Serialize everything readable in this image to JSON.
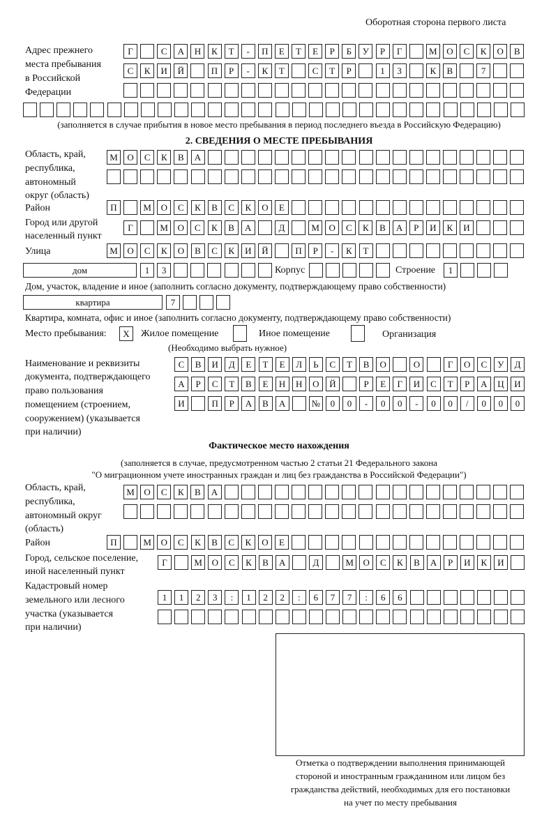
{
  "header": {
    "page_side": "Оборотная сторона первого листа"
  },
  "previous_address": {
    "label": [
      "Адрес прежнего",
      "места пребывания",
      "в Российской",
      "Федерации"
    ],
    "rows": [
      [
        "Г",
        "",
        "С",
        "А",
        "Н",
        "К",
        "Т",
        "-",
        "П",
        "Е",
        "Т",
        "Е",
        "Р",
        "Б",
        "У",
        "Р",
        "Г",
        "",
        "М",
        "О",
        "С",
        "К",
        "О",
        "В"
      ],
      [
        "С",
        "К",
        "И",
        "Й",
        "",
        "П",
        "Р",
        "-",
        "К",
        "Т",
        "",
        "С",
        "Т",
        "Р",
        "",
        "1",
        "3",
        "",
        "К",
        "В",
        "",
        "7",
        "",
        ""
      ],
      [
        "",
        "",
        "",
        "",
        "",
        "",
        "",
        "",
        "",
        "",
        "",
        "",
        "",
        "",
        "",
        "",
        "",
        "",
        "",
        "",
        "",
        "",
        "",
        ""
      ],
      [
        "",
        "",
        "",
        "",
        "",
        "",
        "",
        "",
        "",
        "",
        "",
        "",
        "",
        "",
        "",
        "",
        "",
        "",
        "",
        "",
        "",
        "",
        "",
        "",
        "",
        "",
        "",
        "",
        "",
        ""
      ]
    ],
    "note": "(заполняется в случае прибытия в новое место пребывания в период последнего въезда в Российскую Федерацию)"
  },
  "section2": {
    "title": "2. СВЕДЕНИЯ О МЕСТЕ ПРЕБЫВАНИЯ",
    "region_label": [
      "Область, край,",
      "республика,",
      "автономный",
      "округ (область)"
    ],
    "region_rows": [
      [
        "М",
        "О",
        "С",
        "К",
        "В",
        "А",
        "",
        "",
        "",
        "",
        "",
        "",
        "",
        "",
        "",
        "",
        "",
        "",
        "",
        "",
        "",
        "",
        "",
        "",
        ""
      ],
      [
        "",
        "",
        "",
        "",
        "",
        "",
        "",
        "",
        "",
        "",
        "",
        "",
        "",
        "",
        "",
        "",
        "",
        "",
        "",
        "",
        "",
        "",
        "",
        "",
        ""
      ]
    ],
    "district_label": "Район",
    "district_row": [
      "П",
      "",
      "М",
      "О",
      "С",
      "К",
      "В",
      "С",
      "К",
      "О",
      "Е",
      "",
      "",
      "",
      "",
      "",
      "",
      "",
      "",
      "",
      "",
      "",
      "",
      "",
      ""
    ],
    "city_label": [
      "Город или другой",
      "населенный пункт"
    ],
    "city_row": [
      "Г",
      "",
      "М",
      "О",
      "С",
      "К",
      "В",
      "А",
      "",
      "Д",
      "",
      "М",
      "О",
      "С",
      "К",
      "В",
      "А",
      "Р",
      "И",
      "К",
      "И",
      "",
      "",
      ""
    ],
    "street_label": "Улица",
    "street_row": [
      "М",
      "О",
      "С",
      "К",
      "О",
      "В",
      "С",
      "К",
      "И",
      "Й",
      "",
      "П",
      "Р",
      "-",
      "К",
      "Т",
      "",
      "",
      "",
      "",
      "",
      "",
      "",
      "",
      ""
    ],
    "house_type": "дом",
    "house_row": [
      "1",
      "3",
      "",
      "",
      "",
      "",
      "",
      ""
    ],
    "korpus_label": "Корпус",
    "korpus_row": [
      "",
      "",
      "",
      "",
      ""
    ],
    "building_label": "Строение",
    "building_row": [
      "1",
      "",
      "",
      ""
    ],
    "house_note": "Дом, участок, владение и иное (заполнить согласно документу, подтверждающему право собственности)",
    "apartment_type": "квартира",
    "apartment_row": [
      "7",
      "",
      "",
      ""
    ],
    "apartment_note": "Квартира, комната, офис и иное (заполнить согласно документу, подтверждающему право собственности)",
    "stay_place_label": "Место пребывания:",
    "stay_options": [
      {
        "label": "Жилое помещение",
        "mark": "X"
      },
      {
        "label": "Иное помещение",
        "mark": ""
      },
      {
        "label": "Организация",
        "mark": ""
      }
    ],
    "stay_note": "(Необходимо выбрать нужное)",
    "document_label": [
      "Наименование и реквизиты",
      "документа, подтверждающего",
      "право пользования",
      "помещением (строением,",
      "сооружением) (указывается",
      "при наличии)"
    ],
    "document_rows": [
      [
        "С",
        "В",
        "И",
        "Д",
        "Е",
        "Т",
        "Е",
        "Л",
        "Ь",
        "С",
        "Т",
        "В",
        "О",
        "",
        "О",
        "",
        "Г",
        "О",
        "С",
        "У",
        "Д"
      ],
      [
        "А",
        "Р",
        "С",
        "Т",
        "В",
        "Е",
        "Н",
        "Н",
        "О",
        "Й",
        "",
        "Р",
        "Е",
        "Г",
        "И",
        "С",
        "Т",
        "Р",
        "А",
        "Ц",
        "И"
      ],
      [
        "И",
        "",
        "П",
        "Р",
        "А",
        "В",
        "А",
        "",
        "№",
        "0",
        "0",
        "-",
        "0",
        "0",
        "-",
        "0",
        "0",
        "/",
        "0",
        "0",
        "0"
      ]
    ]
  },
  "actual_location": {
    "title": "Фактическое место нахождения",
    "note": [
      "(заполняется в случае, предусмотренном частью 2 статьи 21 Федерального закона",
      "\"О миграционном учете иностранных граждан и лиц без гражданства в Российской Федерации\")"
    ],
    "region_label": [
      "Область, край,",
      "республика,",
      "автономный округ",
      "(область)"
    ],
    "region_rows": [
      [
        "М",
        "О",
        "С",
        "К",
        "В",
        "А",
        "",
        "",
        "",
        "",
        "",
        "",
        "",
        "",
        "",
        "",
        "",
        "",
        "",
        "",
        "",
        "",
        "",
        ""
      ],
      [
        "",
        "",
        "",
        "",
        "",
        "",
        "",
        "",
        "",
        "",
        "",
        "",
        "",
        "",
        "",
        "",
        "",
        "",
        "",
        "",
        "",
        "",
        "",
        ""
      ]
    ],
    "district_label": "Район",
    "district_row": [
      "П",
      "",
      "М",
      "О",
      "С",
      "К",
      "В",
      "С",
      "К",
      "О",
      "Е",
      "",
      "",
      "",
      "",
      "",
      "",
      "",
      "",
      "",
      "",
      "",
      "",
      "",
      ""
    ],
    "city_label": [
      "Город, сельское поселение,",
      "иной населенный пункт"
    ],
    "city_row": [
      "Г",
      "",
      "М",
      "О",
      "С",
      "К",
      "В",
      "А",
      "",
      "Д",
      "",
      "М",
      "О",
      "С",
      "К",
      "В",
      "А",
      "Р",
      "И",
      "К",
      "И",
      ""
    ],
    "cadastral_label": [
      "Кадастровый номер",
      "земельного или лесного",
      "участка (указывается",
      "при наличии)"
    ],
    "cadastral_rows": [
      [
        "1",
        "1",
        "2",
        "3",
        ":",
        "1",
        "2",
        "2",
        ":",
        "6",
        "7",
        "7",
        ":",
        "6",
        "6",
        "",
        "",
        "",
        "",
        "",
        "",
        ""
      ],
      [
        "",
        "",
        "",
        "",
        "",
        "",
        "",
        "",
        "",
        "",
        "",
        "",
        "",
        "",
        "",
        "",
        "",
        "",
        "",
        "",
        "",
        ""
      ]
    ]
  },
  "confirmation_caption": [
    "Отметка о подтверждении выполнения принимающей",
    "стороной и иностранным гражданином или лицом без",
    "гражданства действий, необходимых для его постановки",
    "на учет по месту пребывания"
  ]
}
